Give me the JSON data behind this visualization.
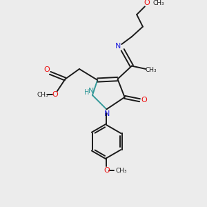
{
  "bg_color": "#ececec",
  "bond_color": "#1a1a1a",
  "n_color": "#2222dd",
  "o_color": "#ee1111",
  "nh_color": "#339999",
  "figsize": [
    3.0,
    3.0
  ],
  "dpi": 100,
  "xlim": [
    0,
    10
  ],
  "ylim": [
    0,
    10
  ]
}
